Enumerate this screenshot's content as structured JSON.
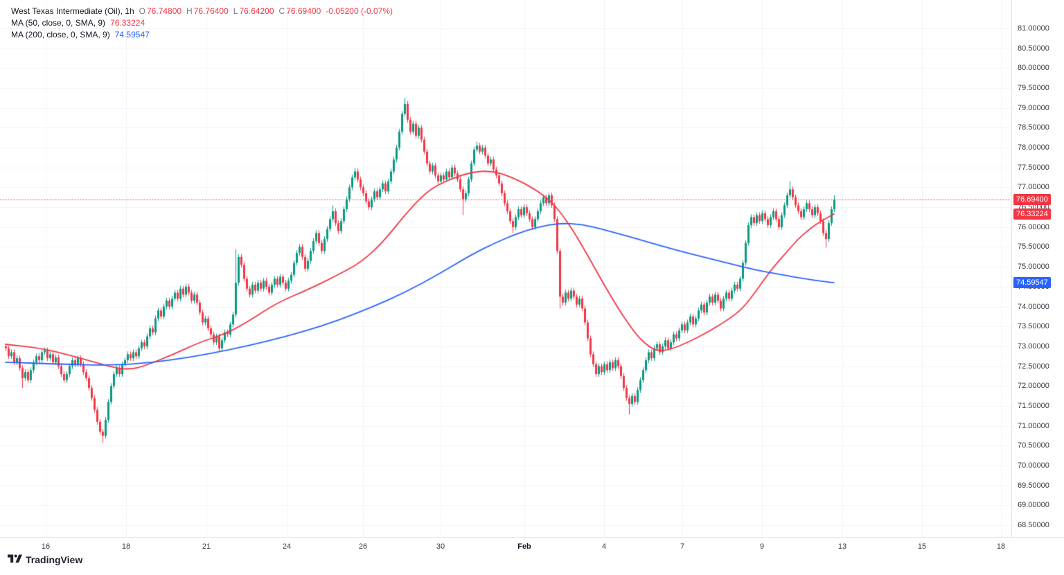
{
  "header": {
    "symbol_title": "West Texas Intermediate (Oil), 1h",
    "ohlc": [
      {
        "label": "O",
        "value": "76.74800"
      },
      {
        "label": "H",
        "value": "76.76400"
      },
      {
        "label": "L",
        "value": "76.64200"
      },
      {
        "label": "C",
        "value": "76.69400"
      }
    ],
    "change": "-0.05200 (-0.07%)",
    "ma50": {
      "label": "MA (50, close, 0, SMA, 9)",
      "value": "76.33224"
    },
    "ma200": {
      "label": "MA (200, close, 0, SMA, 9)",
      "value": "74.59547"
    }
  },
  "colors": {
    "up": "#089981",
    "down": "#f23645",
    "ma50": "#f23645",
    "ma200": "#2962ff",
    "grid": "#f0f3fa",
    "axis_text": "#363a45"
  },
  "badges": [
    {
      "name": "last-price-badge",
      "text": "76.69400",
      "price": 76.694,
      "color": "#f23645"
    },
    {
      "name": "ma50-price-badge",
      "text": "76.33224",
      "price": 76.33224,
      "color": "#f23645"
    },
    {
      "name": "ma200-price-badge",
      "text": "74.59547",
      "price": 74.59547,
      "color": "#2962ff"
    }
  ],
  "watermark": {
    "text": "TradingView"
  },
  "chart_data": {
    "type": "candlestick",
    "title": "West Texas Intermediate (Oil)",
    "interval": "1h",
    "ylim": [
      68.5,
      81.0
    ],
    "y_ticks": [
      81.0,
      80.5,
      80.0,
      79.5,
      79.0,
      78.5,
      78.0,
      77.5,
      77.0,
      76.5,
      76.0,
      75.5,
      75.0,
      74.5,
      74.0,
      73.5,
      73.0,
      72.5,
      72.0,
      71.5,
      71.0,
      70.5,
      70.0,
      69.5,
      69.0,
      68.5
    ],
    "x_ticks": [
      {
        "label": "16",
        "i": 14.5
      },
      {
        "label": "18",
        "i": 43.5
      },
      {
        "label": "21",
        "i": 72.5
      },
      {
        "label": "24",
        "i": 101.5
      },
      {
        "label": "26",
        "i": 129
      },
      {
        "label": "30",
        "i": 157
      },
      {
        "label": "Feb",
        "i": 187.25,
        "bold": true
      },
      {
        "label": "4",
        "i": 216
      },
      {
        "label": "7",
        "i": 244.25
      },
      {
        "label": "9",
        "i": 273
      },
      {
        "label": "13",
        "i": 302
      },
      {
        "label": "15",
        "i": 330.75
      },
      {
        "label": "18",
        "i": 359.25
      }
    ],
    "last_price": 76.694,
    "first_open": 73.0,
    "default_wick": 0.07,
    "closes": [
      72.95,
      72.75,
      72.85,
      72.6,
      72.7,
      72.45,
      72.2,
      72.35,
      72.15,
      72.4,
      72.6,
      72.75,
      72.65,
      72.85,
      72.9,
      72.7,
      72.8,
      72.6,
      72.72,
      72.5,
      72.3,
      72.15,
      72.3,
      72.5,
      72.65,
      72.55,
      72.7,
      72.55,
      72.35,
      72.2,
      71.95,
      71.7,
      71.4,
      71.1,
      70.85,
      70.75,
      71.15,
      71.6,
      72.0,
      72.3,
      72.45,
      72.3,
      72.55,
      72.65,
      72.8,
      72.7,
      72.85,
      72.75,
      72.95,
      73.1,
      73.0,
      73.25,
      73.45,
      73.35,
      73.7,
      73.9,
      73.75,
      74.0,
      74.15,
      74.0,
      74.2,
      74.35,
      74.2,
      74.45,
      74.3,
      74.5,
      74.35,
      74.15,
      74.3,
      74.1,
      73.85,
      73.6,
      73.7,
      73.45,
      73.3,
      73.1,
      73.25,
      72.95,
      73.15,
      73.35,
      73.3,
      73.55,
      73.8,
      74.6,
      75.25,
      75.05,
      74.7,
      74.45,
      74.3,
      74.55,
      74.4,
      74.6,
      74.45,
      74.65,
      74.5,
      74.35,
      74.55,
      74.7,
      74.55,
      74.75,
      74.6,
      74.45,
      74.65,
      74.8,
      75.1,
      75.35,
      75.5,
      75.25,
      74.95,
      75.15,
      75.4,
      75.65,
      75.85,
      75.6,
      75.4,
      75.7,
      75.95,
      76.2,
      76.4,
      76.1,
      75.9,
      76.15,
      76.45,
      76.7,
      77.0,
      77.25,
      77.4,
      77.2,
      77.0,
      76.85,
      76.65,
      76.5,
      76.7,
      76.9,
      76.75,
      76.95,
      77.1,
      76.9,
      77.15,
      77.4,
      77.7,
      78.0,
      78.4,
      78.85,
      79.1,
      78.7,
      78.4,
      78.6,
      78.3,
      78.5,
      78.2,
      77.9,
      77.6,
      77.4,
      77.55,
      77.3,
      77.15,
      77.3,
      77.2,
      77.4,
      77.25,
      77.5,
      77.35,
      77.2,
      76.95,
      76.7,
      76.85,
      77.2,
      77.6,
      77.95,
      78.05,
      77.9,
      78.0,
      77.8,
      77.6,
      77.7,
      77.45,
      77.3,
      77.1,
      76.85,
      76.6,
      76.4,
      76.15,
      76.0,
      76.25,
      76.45,
      76.3,
      76.5,
      76.35,
      76.2,
      76.0,
      76.2,
      76.4,
      76.6,
      76.75,
      76.6,
      76.8,
      76.55,
      76.2,
      75.4,
      74.25,
      74.1,
      74.35,
      74.2,
      74.4,
      74.25,
      74.05,
      74.2,
      73.95,
      73.6,
      73.2,
      72.8,
      72.55,
      72.3,
      72.5,
      72.35,
      72.55,
      72.4,
      72.6,
      72.45,
      72.65,
      72.5,
      72.25,
      71.95,
      71.7,
      71.55,
      71.75,
      71.6,
      71.9,
      72.15,
      72.4,
      72.65,
      72.85,
      72.7,
      72.95,
      73.05,
      72.85,
      73.0,
      73.15,
      72.95,
      73.1,
      73.3,
      73.2,
      73.4,
      73.55,
      73.4,
      73.6,
      73.75,
      73.55,
      73.7,
      73.9,
      74.05,
      73.85,
      74.1,
      74.25,
      74.1,
      74.3,
      74.15,
      73.95,
      74.2,
      74.35,
      74.2,
      74.4,
      74.55,
      74.45,
      74.7,
      75.1,
      75.6,
      76.05,
      76.25,
      76.1,
      76.3,
      76.15,
      76.35,
      76.2,
      76.05,
      76.25,
      76.4,
      76.2,
      76.0,
      76.3,
      76.55,
      76.8,
      76.95,
      76.75,
      76.55,
      76.4,
      76.25,
      76.45,
      76.6,
      76.45,
      76.3,
      76.5,
      76.35,
      76.15,
      75.85,
      75.7,
      76.1,
      76.45,
      76.694
    ],
    "wick_overrides": {
      "6": {
        "low": 71.95
      },
      "35": {
        "low": 70.58
      },
      "83": {
        "high": 75.45
      },
      "118": {
        "high": 76.55
      },
      "126": {
        "high": 77.48
      },
      "144": {
        "high": 79.25
      },
      "165": {
        "low": 76.3
      },
      "170": {
        "high": 78.15
      },
      "183": {
        "low": 75.85
      },
      "200": {
        "low": 73.95
      },
      "225": {
        "low": 71.28
      },
      "283": {
        "high": 77.15
      },
      "296": {
        "low": 75.48
      },
      "299": {
        "high": 76.8
      }
    },
    "series": [
      {
        "name": "SMA 50",
        "points": [
          [
            0,
            73.05
          ],
          [
            13,
            72.95
          ],
          [
            23,
            72.78
          ],
          [
            33,
            72.58
          ],
          [
            40,
            72.45
          ],
          [
            45,
            72.42
          ],
          [
            50,
            72.5
          ],
          [
            60,
            72.78
          ],
          [
            70,
            73.1
          ],
          [
            78,
            73.28
          ],
          [
            86,
            73.55
          ],
          [
            98,
            74.1
          ],
          [
            110,
            74.45
          ],
          [
            120,
            74.8
          ],
          [
            128,
            75.1
          ],
          [
            136,
            75.6
          ],
          [
            144,
            76.3
          ],
          [
            152,
            76.9
          ],
          [
            160,
            77.2
          ],
          [
            168,
            77.38
          ],
          [
            175,
            77.42
          ],
          [
            182,
            77.28
          ],
          [
            190,
            77.0
          ],
          [
            196,
            76.7
          ],
          [
            200,
            76.4
          ],
          [
            205,
            75.9
          ],
          [
            210,
            75.3
          ],
          [
            216,
            74.55
          ],
          [
            222,
            73.85
          ],
          [
            227,
            73.35
          ],
          [
            231,
            73.05
          ],
          [
            235,
            72.88
          ],
          [
            240,
            72.92
          ],
          [
            247,
            73.12
          ],
          [
            254,
            73.38
          ],
          [
            261,
            73.68
          ],
          [
            266,
            73.95
          ],
          [
            271,
            74.4
          ],
          [
            276,
            74.9
          ],
          [
            281,
            75.3
          ],
          [
            286,
            75.7
          ],
          [
            291,
            76.0
          ],
          [
            295,
            76.18
          ],
          [
            299,
            76.33
          ]
        ]
      },
      {
        "name": "SMA 200",
        "points": [
          [
            0,
            72.6
          ],
          [
            20,
            72.55
          ],
          [
            38,
            72.52
          ],
          [
            52,
            72.58
          ],
          [
            66,
            72.72
          ],
          [
            80,
            72.9
          ],
          [
            94,
            73.12
          ],
          [
            108,
            73.38
          ],
          [
            120,
            73.65
          ],
          [
            132,
            73.98
          ],
          [
            144,
            74.35
          ],
          [
            156,
            74.8
          ],
          [
            168,
            75.3
          ],
          [
            176,
            75.58
          ],
          [
            184,
            75.82
          ],
          [
            192,
            76.0
          ],
          [
            200,
            76.1
          ],
          [
            208,
            76.07
          ],
          [
            215,
            75.95
          ],
          [
            222,
            75.82
          ],
          [
            230,
            75.66
          ],
          [
            238,
            75.5
          ],
          [
            246,
            75.35
          ],
          [
            254,
            75.21
          ],
          [
            262,
            75.07
          ],
          [
            270,
            74.93
          ],
          [
            278,
            74.83
          ],
          [
            286,
            74.73
          ],
          [
            292,
            74.66
          ],
          [
            299,
            74.6
          ]
        ]
      }
    ]
  }
}
